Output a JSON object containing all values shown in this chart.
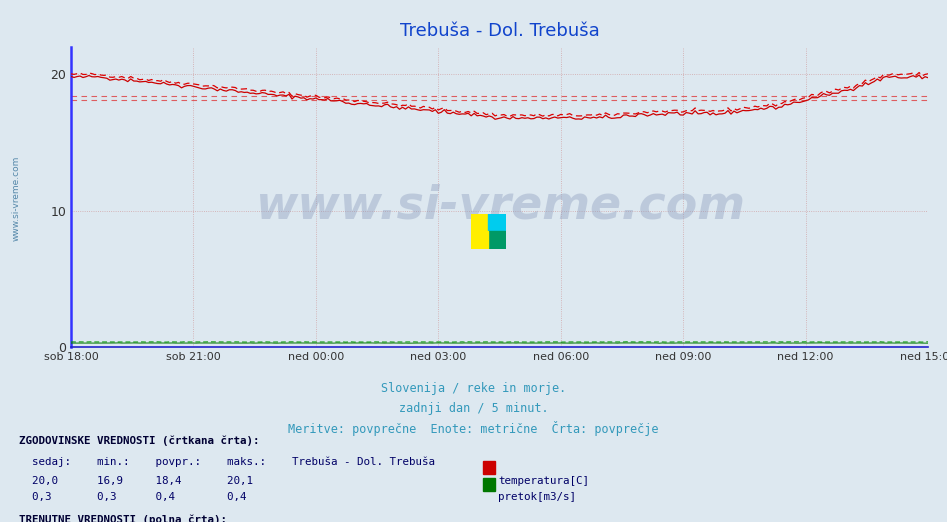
{
  "title": "Trebuša - Dol. Trebuša",
  "title_color": "#1144cc",
  "bg_color": "#dde8f0",
  "plot_bg_color": "#dde8f0",
  "grid_color": "#cc8888",
  "xlabel_color": "#3399bb",
  "x_tick_labels": [
    "sob 18:00",
    "sob 21:00",
    "ned 00:00",
    "ned 03:00",
    "ned 06:00",
    "ned 09:00",
    "ned 12:00",
    "ned 15:00"
  ],
  "x_tick_positions": [
    0,
    36,
    72,
    108,
    144,
    180,
    216,
    252
  ],
  "ylim": [
    0,
    22
  ],
  "yticks": [
    0,
    10,
    20
  ],
  "n_points": 288,
  "temp_hist_color": "#dd0000",
  "temp_curr_color": "#cc0000",
  "flow_hist_color": "#009900",
  "flow_curr_color": "#007700",
  "hline1_y": 18.4,
  "hline2_y": 18.1,
  "hline_color": "#dd0000",
  "left_spine_color": "#3333ff",
  "bottom_spine_color": "#2222cc",
  "watermark_color": "#8899bb",
  "footer_header_color": "#000033",
  "footer_data_color": "#000066",
  "xlabel_lines": [
    "Slovenija / reke in morje.",
    "zadnji dan / 5 minut.",
    "Meritve: povprečne  Enote: metrične  Črta: povprečje"
  ]
}
